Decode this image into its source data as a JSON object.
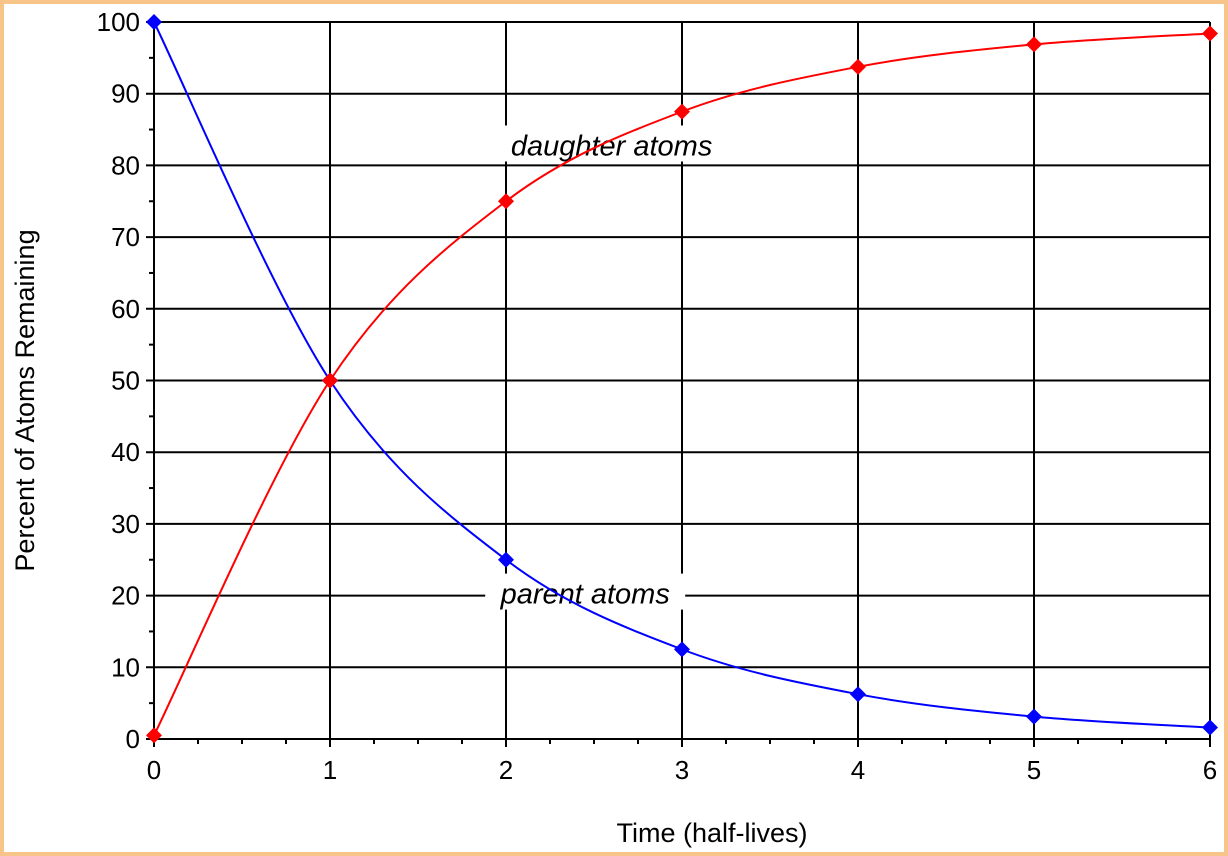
{
  "chart_data": {
    "type": "line",
    "title": "",
    "xlabel": "Time (half-lives)",
    "ylabel": "Percent of  Atoms Remaining",
    "xlim": [
      0,
      6
    ],
    "ylim": [
      0,
      100
    ],
    "x_ticks": [
      "0",
      "1",
      "2",
      "3",
      "4",
      "5",
      "6"
    ],
    "y_ticks": [
      "0",
      "10",
      "20",
      "30",
      "40",
      "50",
      "60",
      "70",
      "80",
      "90",
      "100"
    ],
    "grid": true,
    "legend": "none",
    "series": [
      {
        "name": "parent atoms",
        "color": "#0000ff",
        "marker": "diamond",
        "x": [
          0,
          1,
          2,
          3,
          4,
          5,
          6
        ],
        "y": [
          100,
          50,
          25,
          12.5,
          6.25,
          3.125,
          1.6
        ]
      },
      {
        "name": "daughter atoms",
        "color": "#ff0000",
        "marker": "diamond",
        "x": [
          0,
          1,
          2,
          3,
          4,
          5,
          6
        ],
        "y": [
          0.5,
          50,
          75,
          87.5,
          93.75,
          96.875,
          98.4
        ]
      }
    ],
    "annotations": [
      {
        "text": "daughter atoms",
        "x": 2.6,
        "y": 82.5
      },
      {
        "text": "parent atoms",
        "x": 2.45,
        "y": 20
      }
    ]
  }
}
